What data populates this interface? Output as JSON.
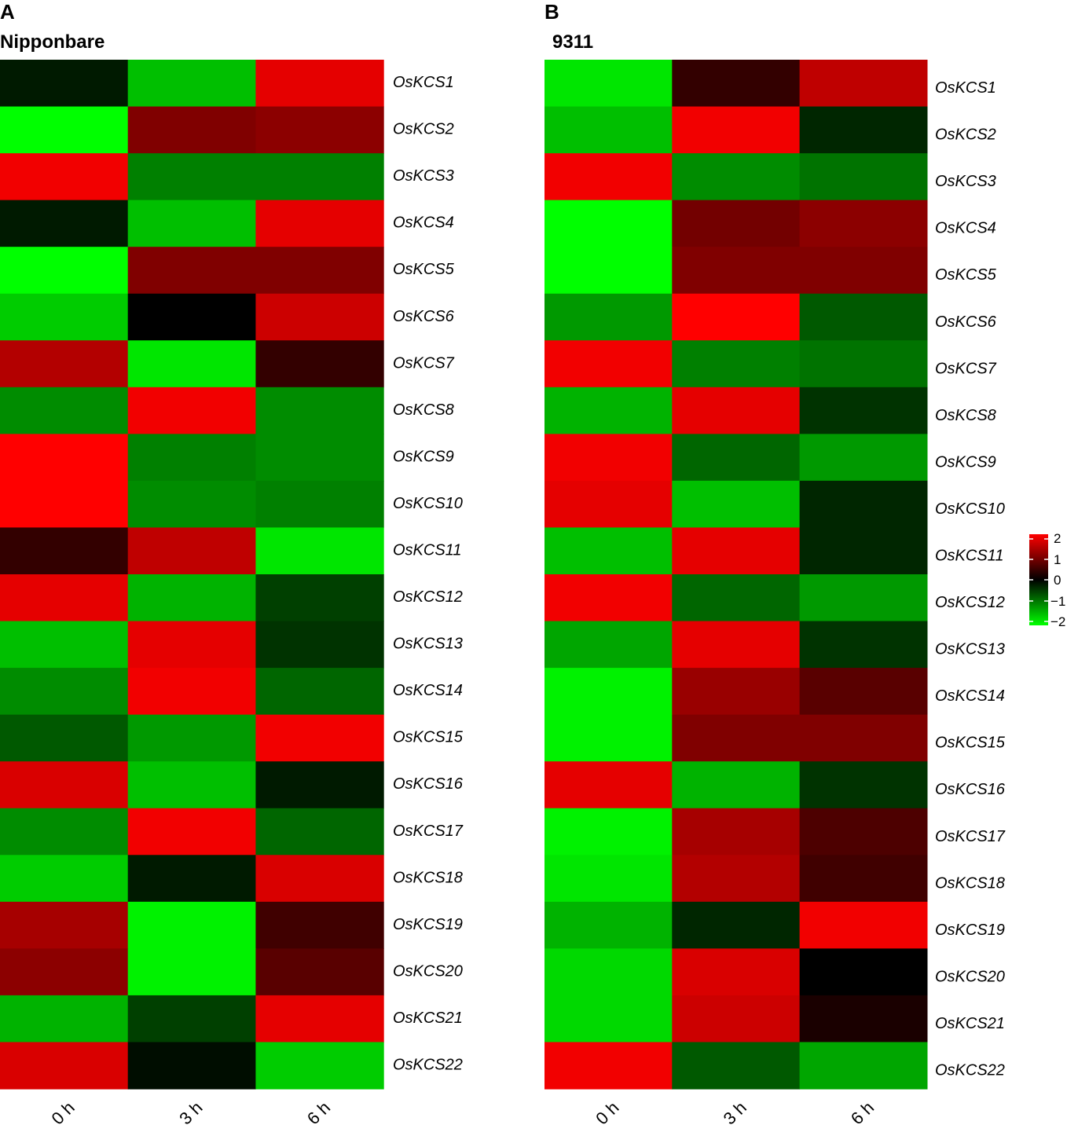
{
  "colors": {
    "low": "#00ff00",
    "mid": "#000000",
    "high": "#ff0000"
  },
  "chart_data": [
    {
      "type": "heatmap",
      "panel": "A",
      "title": "Nipponbare",
      "columns": [
        "0 h",
        "3 h",
        "6 h"
      ],
      "rows": [
        "OsKCS1",
        "OsKCS2",
        "OsKCS3",
        "OsKCS4",
        "OsKCS5",
        "OsKCS6",
        "OsKCS7",
        "OsKCS8",
        "OsKCS9",
        "OsKCS10",
        "OsKCS11",
        "OsKCS12",
        "OsKCS13",
        "OsKCS14",
        "OsKCS15",
        "OsKCS16",
        "OsKCS17",
        "OsKCS18",
        "OsKCS19",
        "OsKCS20",
        "OsKCS21",
        "OsKCS22"
      ],
      "values": [
        [
          -0.2,
          -1.5,
          1.8
        ],
        [
          -2.0,
          1.0,
          1.1
        ],
        [
          1.9,
          -1.0,
          -1.0
        ],
        [
          -0.2,
          -1.5,
          1.8
        ],
        [
          -2.0,
          1.0,
          1.0
        ],
        [
          -1.6,
          0.0,
          1.6
        ],
        [
          1.4,
          -1.8,
          0.4
        ],
        [
          -1.1,
          1.9,
          -1.1
        ],
        [
          2.0,
          -1.0,
          -1.1
        ],
        [
          2.0,
          -1.1,
          -1.0
        ],
        [
          0.4,
          1.5,
          -1.8
        ],
        [
          1.8,
          -1.4,
          -0.5
        ],
        [
          -1.5,
          1.8,
          -0.4
        ],
        [
          -1.1,
          1.9,
          -0.8
        ],
        [
          -0.7,
          -1.2,
          1.9
        ],
        [
          1.7,
          -1.5,
          -0.2
        ],
        [
          -1.1,
          1.9,
          -0.8
        ],
        [
          -1.6,
          -0.2,
          1.7
        ],
        [
          1.3,
          -1.9,
          0.5
        ],
        [
          1.1,
          -1.9,
          0.7
        ],
        [
          -1.4,
          -0.5,
          1.8
        ],
        [
          1.7,
          -0.1,
          -1.6
        ]
      ],
      "color_scale": {
        "min": -2,
        "max": 2
      }
    },
    {
      "type": "heatmap",
      "panel": "B",
      "title": "9311",
      "columns": [
        "0 h",
        "3 h",
        "6 h"
      ],
      "rows": [
        "OsKCS1",
        "OsKCS2",
        "OsKCS3",
        "OsKCS4",
        "OsKCS5",
        "OsKCS6",
        "OsKCS7",
        "OsKCS8",
        "OsKCS9",
        "OsKCS10",
        "OsKCS11",
        "OsKCS12",
        "OsKCS13",
        "OsKCS14",
        "OsKCS15",
        "OsKCS16",
        "OsKCS17",
        "OsKCS18",
        "OsKCS19",
        "OsKCS20",
        "OsKCS21",
        "OsKCS22"
      ],
      "values": [
        [
          -1.8,
          0.4,
          1.5
        ],
        [
          -1.5,
          1.9,
          -0.3
        ],
        [
          1.9,
          -1.1,
          -0.9
        ],
        [
          -2.0,
          0.9,
          1.1
        ],
        [
          -2.0,
          1.0,
          1.0
        ],
        [
          -1.2,
          2.0,
          -0.7
        ],
        [
          1.9,
          -1.0,
          -0.9
        ],
        [
          -1.4,
          1.8,
          -0.4
        ],
        [
          1.9,
          -0.8,
          -1.2
        ],
        [
          1.8,
          -1.5,
          -0.3
        ],
        [
          -1.5,
          1.8,
          -0.3
        ],
        [
          1.9,
          -0.8,
          -1.2
        ],
        [
          -1.3,
          1.8,
          -0.4
        ],
        [
          -1.9,
          1.2,
          0.7
        ],
        [
          -1.9,
          1.0,
          1.0
        ],
        [
          1.8,
          -1.4,
          -0.4
        ],
        [
          -1.9,
          1.3,
          0.6
        ],
        [
          -1.8,
          1.4,
          0.5
        ],
        [
          -1.4,
          -0.3,
          1.9
        ],
        [
          -1.7,
          1.7,
          0.0
        ],
        [
          -1.7,
          1.6,
          0.2
        ],
        [
          1.9,
          -0.7,
          -1.3
        ]
      ],
      "color_scale": {
        "min": -2,
        "max": 2
      }
    }
  ],
  "legend": {
    "ticks": [
      "2",
      "1",
      "0",
      "−1",
      "−2"
    ]
  }
}
